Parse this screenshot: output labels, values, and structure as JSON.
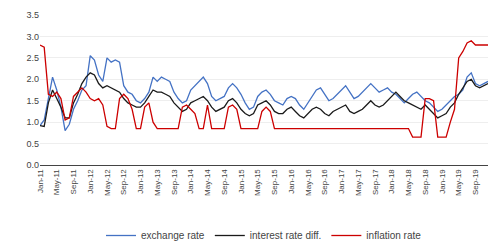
{
  "chart_data": {
    "type": "line",
    "categories": [
      "Jan-11",
      null,
      null,
      null,
      "May-11",
      null,
      null,
      null,
      "Sep-11",
      null,
      null,
      null,
      "Jan-12",
      null,
      null,
      null,
      "May-12",
      null,
      null,
      null,
      "Sep-12",
      null,
      null,
      null,
      "Jan-13",
      null,
      null,
      null,
      "May-13",
      null,
      null,
      null,
      "Sep-13",
      null,
      null,
      null,
      "Jan-14",
      null,
      null,
      null,
      "May-14",
      null,
      null,
      null,
      "Sep-14",
      null,
      null,
      null,
      "Jan-15",
      null,
      null,
      null,
      "May-15",
      null,
      null,
      null,
      "Sep-15",
      null,
      null,
      null,
      "Jan-16",
      null,
      null,
      null,
      "May-16",
      null,
      null,
      null,
      "Sep-16",
      null,
      null,
      null,
      "Jan-17",
      null,
      null,
      null,
      "May-17",
      null,
      null,
      null,
      "Sep-17",
      null,
      null,
      null,
      "Jan-18",
      null,
      null,
      null,
      "May-18",
      null,
      null,
      null,
      "Sep-18",
      null,
      null,
      null,
      "Jan-19",
      null,
      null,
      null,
      "May-19",
      null,
      null,
      null,
      "Sep-19",
      null,
      null,
      null
    ],
    "series": [
      {
        "name": "exchange rate",
        "color": "#4472C4",
        "values": [
          0.92,
          1.05,
          1.55,
          2.05,
          1.75,
          1.35,
          0.8,
          0.95,
          1.3,
          1.5,
          1.75,
          1.85,
          2.55,
          2.45,
          2.1,
          1.95,
          2.5,
          2.4,
          2.45,
          2.4,
          1.85,
          1.7,
          1.65,
          1.5,
          1.45,
          1.55,
          1.7,
          2.05,
          1.95,
          2.05,
          2.0,
          1.95,
          1.7,
          1.55,
          1.45,
          1.5,
          1.75,
          1.85,
          1.95,
          2.05,
          1.9,
          1.6,
          1.5,
          1.55,
          1.6,
          1.8,
          1.9,
          1.8,
          1.65,
          1.45,
          1.3,
          1.35,
          1.6,
          1.7,
          1.75,
          1.65,
          1.5,
          1.45,
          1.4,
          1.55,
          1.6,
          1.55,
          1.4,
          1.3,
          1.45,
          1.6,
          1.75,
          1.8,
          1.65,
          1.5,
          1.55,
          1.65,
          1.75,
          1.85,
          1.7,
          1.55,
          1.6,
          1.7,
          1.8,
          1.9,
          1.8,
          1.7,
          1.75,
          1.8,
          1.7,
          1.65,
          1.55,
          1.45,
          1.55,
          1.65,
          1.7,
          1.6,
          1.5,
          1.45,
          1.35,
          1.25,
          1.3,
          1.4,
          1.5,
          1.6,
          1.65,
          1.75,
          2.05,
          2.15,
          1.9,
          1.85,
          1.9,
          1.95
        ]
      },
      {
        "name": "interest rate diff.",
        "color": "#1a1a1a",
        "values": [
          0.92,
          0.9,
          1.45,
          1.75,
          1.55,
          1.35,
          1.1,
          1.1,
          1.45,
          1.65,
          1.9,
          2.05,
          2.15,
          2.1,
          1.9,
          1.8,
          1.85,
          1.8,
          1.75,
          1.7,
          1.55,
          1.45,
          1.4,
          1.35,
          1.35,
          1.45,
          1.6,
          1.75,
          1.7,
          1.7,
          1.65,
          1.6,
          1.45,
          1.35,
          1.25,
          1.3,
          1.45,
          1.5,
          1.55,
          1.6,
          1.5,
          1.35,
          1.25,
          1.3,
          1.35,
          1.5,
          1.55,
          1.45,
          1.3,
          1.2,
          1.15,
          1.2,
          1.4,
          1.45,
          1.5,
          1.4,
          1.25,
          1.2,
          1.2,
          1.3,
          1.35,
          1.25,
          1.15,
          1.1,
          1.2,
          1.3,
          1.35,
          1.3,
          1.2,
          1.15,
          1.25,
          1.3,
          1.35,
          1.4,
          1.25,
          1.2,
          1.25,
          1.3,
          1.4,
          1.5,
          1.4,
          1.35,
          1.4,
          1.5,
          1.6,
          1.7,
          1.6,
          1.5,
          1.45,
          1.4,
          1.35,
          1.3,
          1.4,
          1.3,
          1.2,
          1.1,
          1.15,
          1.2,
          1.35,
          1.45,
          1.65,
          1.8,
          1.95,
          2.0,
          1.85,
          1.8,
          1.85,
          1.9
        ]
      },
      {
        "name": "inflation rate",
        "color": "#CC0000",
        "values": [
          2.8,
          2.75,
          1.65,
          1.6,
          1.7,
          1.55,
          1.05,
          1.1,
          1.6,
          1.7,
          1.8,
          1.7,
          1.55,
          1.5,
          1.55,
          1.4,
          0.9,
          0.85,
          0.85,
          1.55,
          1.65,
          1.55,
          1.3,
          0.85,
          0.85,
          1.35,
          1.45,
          1.0,
          0.85,
          0.85,
          0.85,
          0.85,
          0.85,
          0.85,
          1.35,
          1.4,
          1.3,
          1.2,
          0.85,
          0.85,
          1.4,
          0.85,
          0.85,
          0.85,
          0.85,
          1.35,
          1.4,
          1.3,
          0.85,
          0.85,
          0.85,
          0.85,
          0.85,
          1.25,
          1.35,
          1.25,
          0.85,
          0.85,
          0.85,
          0.85,
          0.85,
          0.85,
          0.85,
          0.85,
          0.85,
          0.85,
          0.85,
          0.85,
          0.85,
          0.85,
          0.85,
          0.85,
          0.85,
          0.85,
          0.85,
          0.85,
          0.85,
          0.85,
          0.85,
          0.85,
          0.85,
          0.85,
          0.85,
          0.85,
          0.85,
          0.85,
          0.85,
          0.85,
          0.85,
          0.65,
          0.65,
          0.65,
          1.55,
          1.55,
          1.5,
          0.65,
          0.65,
          0.65,
          1.0,
          1.3,
          2.5,
          2.65,
          2.85,
          2.9,
          2.8,
          2.8,
          2.8,
          2.8
        ]
      }
    ],
    "ylim": [
      0,
      3.5
    ],
    "yticks": [
      {
        "value": 0,
        "label": "0.0"
      },
      0.5,
      {
        "value": 1,
        "label": "1.0"
      },
      1.5,
      {
        "value": 2,
        "label": "2.0"
      },
      2.5,
      {
        "value": 3,
        "label": "3.0"
      },
      3.5
    ],
    "grid": true,
    "legend": "bottom"
  }
}
